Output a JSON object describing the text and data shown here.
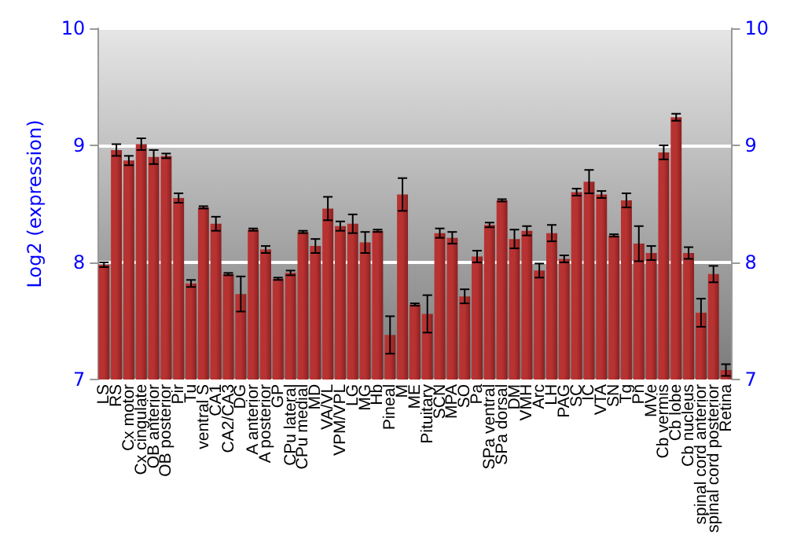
{
  "chart_data": {
    "type": "bar",
    "ylabel": "Log2 (expression)",
    "categories": [
      "LS",
      "RS",
      "Cx motor",
      "Cx cingulate",
      "OB anterior",
      "OB posterior",
      "Pir",
      "Tu",
      "ventral S",
      "CA1",
      "CA2/CA3",
      "DG",
      "A anterior",
      "A posterior",
      "GP",
      "CPu lateral",
      "CPu medial",
      "MD",
      "VA/VL",
      "VPM/VPL",
      "LG",
      "MG",
      "Hb",
      "Pineal",
      "M",
      "ME",
      "Pituitary",
      "SCN",
      "MPA",
      "SO",
      "Pa",
      "SPa ventral",
      "SPa dorsal",
      "DM",
      "VMH",
      "Arc",
      "LH",
      "PAG",
      "SC",
      "IC",
      "VTA",
      "SN",
      "Tg",
      "Pn",
      "MVe",
      "Cb vermis",
      "Cb lobe",
      "Cb nucleus",
      "spinal cord anterior",
      "spinal cord posterior",
      "Retina"
    ],
    "series": [
      {
        "color": "#b83232",
        "values": [
          7.98,
          8.96,
          8.87,
          9.01,
          8.9,
          8.91,
          8.55,
          7.82,
          8.47,
          8.33,
          7.9,
          7.73,
          8.28,
          8.11,
          7.86,
          7.91,
          8.26,
          8.14,
          8.46,
          8.31,
          8.33,
          8.17,
          8.27,
          7.38,
          8.58,
          7.64,
          7.56,
          8.25,
          8.21,
          7.71,
          8.05,
          8.32,
          8.53,
          8.2,
          8.27,
          7.93,
          8.25,
          8.03,
          8.6,
          8.69,
          8.58,
          8.23,
          8.53,
          8.16,
          8.08,
          8.94,
          9.24,
          8.08,
          7.57,
          7.9,
          7.08
        ],
        "errors": [
          0.02,
          0.05,
          0.04,
          0.05,
          0.06,
          0.02,
          0.04,
          0.03,
          0.01,
          0.06,
          0.01,
          0.15,
          0.01,
          0.03,
          0.01,
          0.02,
          0.01,
          0.06,
          0.1,
          0.04,
          0.08,
          0.09,
          0.01,
          0.16,
          0.14,
          0.01,
          0.16,
          0.04,
          0.05,
          0.06,
          0.05,
          0.02,
          0.01,
          0.08,
          0.04,
          0.06,
          0.07,
          0.03,
          0.03,
          0.1,
          0.03,
          0.01,
          0.06,
          0.15,
          0.06,
          0.06,
          0.03,
          0.05,
          0.12,
          0.07,
          0.05
        ]
      }
    ],
    "ylim": [
      7,
      10
    ],
    "yticks": [
      7,
      8,
      9,
      10
    ],
    "y2lim": [
      7,
      10
    ],
    "y2ticks": [
      7,
      8,
      9,
      10
    ],
    "grid": "y"
  }
}
